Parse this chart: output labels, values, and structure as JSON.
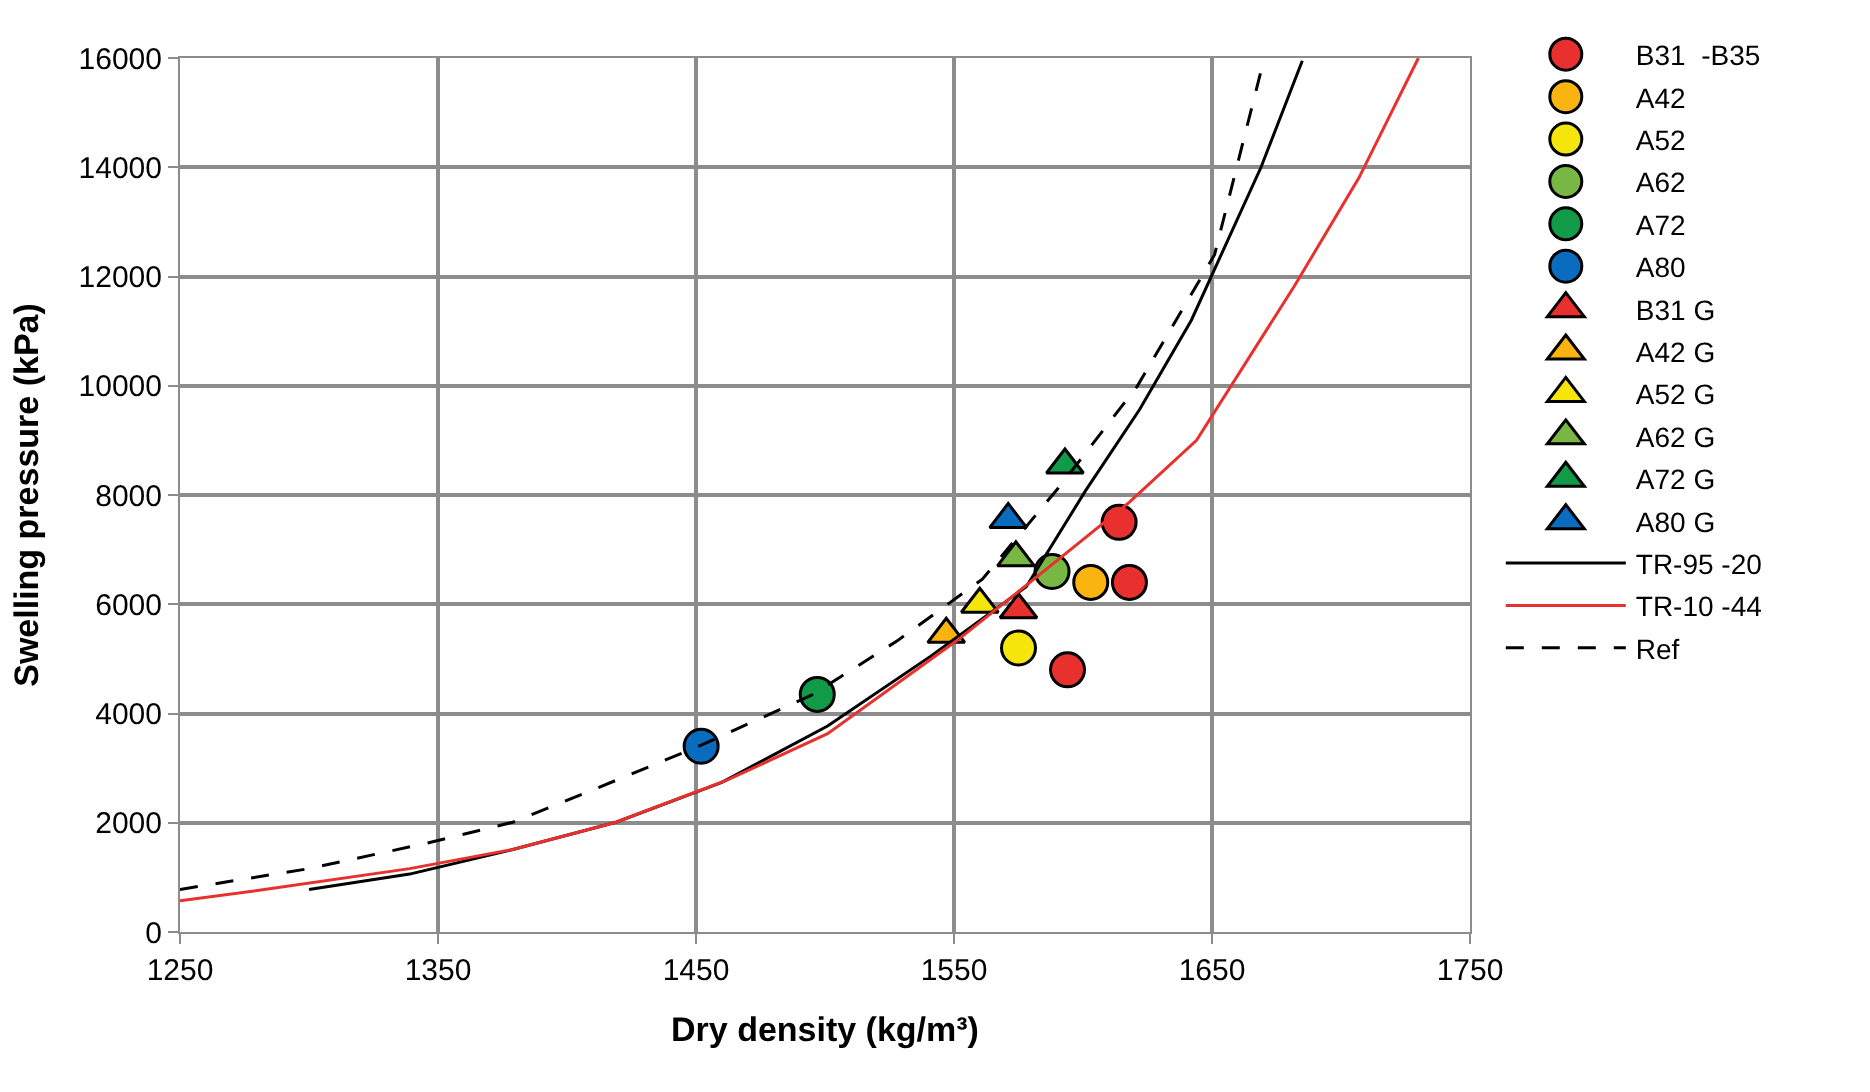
{
  "chart_data": {
    "type": "scatter",
    "xlabel": "Dry density (kg/m³)",
    "ylabel": "Swelling pressure (kPa)",
    "xlim": [
      1250,
      1750
    ],
    "xticks": [
      1250,
      1350,
      1450,
      1550,
      1650,
      1750
    ],
    "ylim": [
      0,
      16000
    ],
    "yticks": [
      0,
      2000,
      4000,
      6000,
      8000,
      10000,
      12000,
      14000,
      16000
    ],
    "grid": true,
    "legend": "right",
    "series": [
      {
        "name": "B31  -B35",
        "color": "#e8312f",
        "marker": "circle",
        "x": [
          1614,
          1618,
          1594
        ],
        "values": [
          7500,
          6400,
          4800
        ]
      },
      {
        "name": "A42",
        "color": "#fbb40f",
        "marker": "circle",
        "x": [
          1603
        ],
        "values": [
          6400
        ]
      },
      {
        "name": "A52",
        "color": "#f5e50b",
        "marker": "circle",
        "x": [
          1575
        ],
        "values": [
          5200
        ]
      },
      {
        "name": "A62",
        "color": "#78b743",
        "marker": "circle",
        "x": [
          1588
        ],
        "values": [
          6600
        ]
      },
      {
        "name": "A72",
        "color": "#119a48",
        "marker": "circle",
        "x": [
          1497
        ],
        "values": [
          4350
        ]
      },
      {
        "name": "A80",
        "color": "#0a6cbf",
        "marker": "circle",
        "x": [
          1452
        ],
        "values": [
          3400
        ]
      },
      {
        "name": "B31 G",
        "color": "#e8312f",
        "marker": "triangle",
        "x": [
          1575
        ],
        "values": [
          5900
        ]
      },
      {
        "name": "A42 G",
        "color": "#fbb40f",
        "marker": "triangle",
        "x": [
          1547
        ],
        "values": [
          5450
        ]
      },
      {
        "name": "A52 G",
        "color": "#f5e50b",
        "marker": "triangle",
        "x": [
          1560
        ],
        "values": [
          6000
        ]
      },
      {
        "name": "A62 G",
        "color": "#78b743",
        "marker": "triangle",
        "x": [
          1574
        ],
        "values": [
          6850
        ]
      },
      {
        "name": "A72 G",
        "color": "#119a48",
        "marker": "triangle",
        "x": [
          1593
        ],
        "values": [
          8550
        ]
      },
      {
        "name": "A80 G",
        "color": "#0a6cbf",
        "marker": "triangle",
        "x": [
          1571
        ],
        "values": [
          7550
        ]
      },
      {
        "name": "TR-95 -20",
        "type": "line",
        "color": "#000000",
        "line_style": "solid",
        "marker": "none",
        "x": [
          1300,
          1339,
          1379,
          1419,
          1460,
          1501,
          1541,
          1578,
          1601,
          1622,
          1642,
          1669,
          1685
        ],
        "values": [
          780,
          1060,
          1510,
          2010,
          2740,
          3770,
          5050,
          6320,
          8080,
          9570,
          11200,
          14000,
          15950
        ]
      },
      {
        "name": "TR-10 -44",
        "type": "line",
        "color": "#e8312f",
        "line_style": "solid",
        "marker": "none",
        "x": [
          1250,
          1280,
          1339,
          1379,
          1419,
          1462,
          1501,
          1551,
          1581,
          1618,
          1644,
          1682,
          1707,
          1730
        ],
        "values": [
          570,
          760,
          1160,
          1510,
          2010,
          2780,
          3630,
          5330,
          6460,
          7870,
          9000,
          11830,
          13810,
          16000
        ]
      },
      {
        "name": "Ref",
        "type": "line",
        "color": "#000000",
        "line_style": "dashed",
        "marker": "none",
        "x": [
          1250,
          1300,
          1346,
          1379,
          1412,
          1452,
          1495,
          1528,
          1561,
          1591,
          1621,
          1651,
          1670
        ],
        "values": [
          780,
          1160,
          1630,
          2010,
          2640,
          3420,
          4340,
          5330,
          6460,
          8160,
          9990,
          12400,
          15950
        ]
      }
    ]
  }
}
